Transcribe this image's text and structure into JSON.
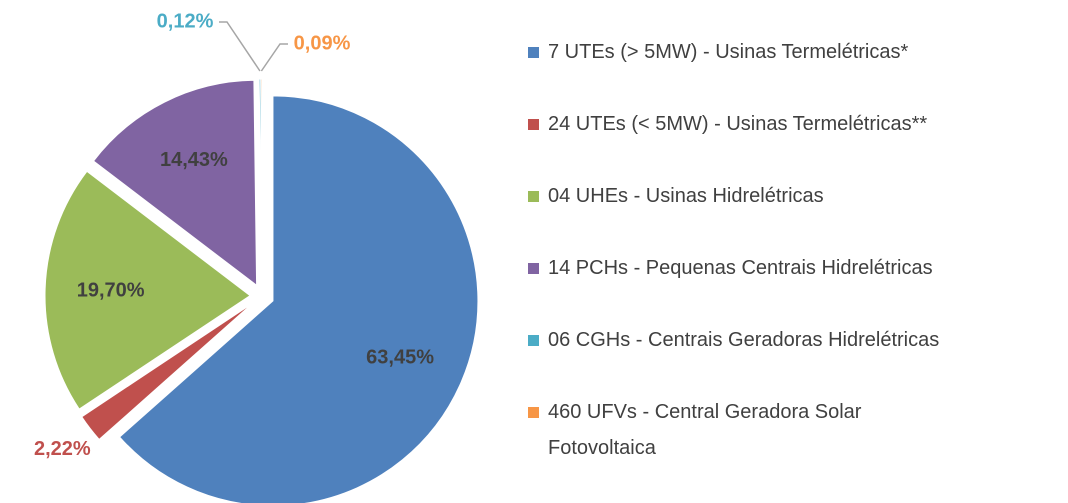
{
  "chart_data": {
    "type": "pie",
    "series": [
      {
        "name": "7 UTEs (> 5MW) - Usinas Termelétricas*",
        "color": "#4f81bd"
      },
      {
        "name": "24 UTEs (< 5MW) - Usinas Termelétricas**",
        "color": "#c0504d"
      },
      {
        "name": "04 UHEs - Usinas Hidrelétricas",
        "color": "#9bbb59"
      },
      {
        "name": "14 PCHs - Pequenas Centrais Hidrelétricas",
        "color": "#8064a2"
      },
      {
        "name": "06 CGHs - Centrais Geradoras Hidrelétricas",
        "color": "#4bacc6"
      },
      {
        "name": "460 UFVs - Central Geradora Solar Fotovoltaica",
        "color": "#f79646"
      }
    ],
    "values": [
      63.45,
      2.22,
      19.7,
      14.43,
      0.12,
      0.09
    ],
    "value_labels": [
      "63,45%",
      "2,22%",
      "19,70%",
      "14,43%",
      "0,12%",
      "0,09%"
    ],
    "legend": "right"
  }
}
